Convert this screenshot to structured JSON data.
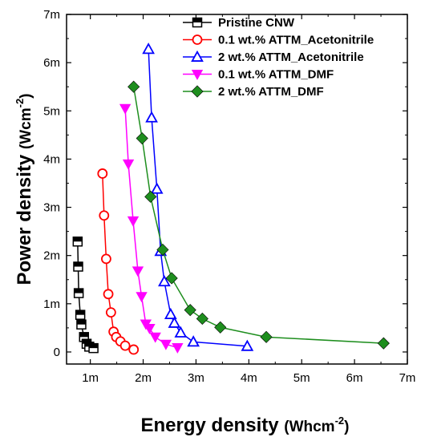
{
  "chart_data": {
    "type": "line",
    "xlabel": "Energy density",
    "xlabel_unit_prefix": "(Whcm",
    "xlabel_unit_exp": "-2",
    "xlabel_unit_suffix": ")",
    "ylabel": "Power density",
    "ylabel_unit_prefix": "(Wcm",
    "ylabel_unit_exp": "-2",
    "ylabel_unit_suffix": ")",
    "xlim": [
      0.00055,
      0.007
    ],
    "ylim": [
      -0.00025,
      0.007
    ],
    "x_ticks": [
      {
        "value": 0.001,
        "label": "1m"
      },
      {
        "value": 0.002,
        "label": "2m"
      },
      {
        "value": 0.003,
        "label": "3m"
      },
      {
        "value": 0.004,
        "label": "4m"
      },
      {
        "value": 0.005,
        "label": "5m"
      },
      {
        "value": 0.006,
        "label": "6m"
      },
      {
        "value": 0.007,
        "label": "7m"
      }
    ],
    "y_ticks": [
      {
        "value": 0,
        "label": "0"
      },
      {
        "value": 0.001,
        "label": "1m"
      },
      {
        "value": 0.002,
        "label": "2m"
      },
      {
        "value": 0.003,
        "label": "3m"
      },
      {
        "value": 0.004,
        "label": "4m"
      },
      {
        "value": 0.005,
        "label": "5m"
      },
      {
        "value": 0.006,
        "label": "6m"
      },
      {
        "value": 0.007,
        "label": "7m"
      }
    ],
    "grid": false,
    "legend_position": "top-right",
    "series": [
      {
        "name": "Pristine CNW",
        "color": "#000000",
        "marker": "half-square",
        "x": [
          0.00076,
          0.00077,
          0.00078,
          0.00081,
          0.00083,
          0.00088,
          0.00093,
          0.00098,
          0.00106
        ],
        "y": [
          0.00229,
          0.00177,
          0.00122,
          0.00077,
          0.00057,
          0.00031,
          0.00017,
          0.00011,
          8e-05
        ]
      },
      {
        "name": "0.1 wt.% ATTM_Acetonitrile",
        "color": "#ff0000",
        "marker": "open-circle",
        "x": [
          0.00123,
          0.00126,
          0.0013,
          0.00134,
          0.00139,
          0.00144,
          0.00149,
          0.00157,
          0.00166,
          0.00182
        ],
        "y": [
          0.0037,
          0.00283,
          0.00193,
          0.0012,
          0.00082,
          0.00042,
          0.00031,
          0.00022,
          0.00013,
          5e-05
        ]
      },
      {
        "name": "2 wt.% ATTM_Acetonitrile",
        "color": "#0000ff",
        "marker": "open-triangle",
        "x": [
          0.0021,
          0.00216,
          0.00226,
          0.00233,
          0.0024,
          0.00252,
          0.00259,
          0.00271,
          0.00295,
          0.00397
        ],
        "y": [
          0.00628,
          0.00486,
          0.00338,
          0.00209,
          0.00146,
          0.00078,
          0.0006,
          0.0004,
          0.00021,
          0.00012
        ]
      },
      {
        "name": "0.1 wt.% ATTM_DMF",
        "color": "#ff00ff",
        "marker": "down-triangle",
        "x": [
          0.00166,
          0.00172,
          0.00181,
          0.0019,
          0.00197,
          0.00205,
          0.00212,
          0.00223,
          0.00243,
          0.00265
        ],
        "y": [
          0.00505,
          0.0039,
          0.00272,
          0.00168,
          0.00115,
          0.00058,
          0.00049,
          0.00031,
          0.00016,
          9e-05
        ]
      },
      {
        "name": "2 wt.% ATTM_DMF",
        "color": "#1e8e1e",
        "marker": "diamond",
        "x": [
          0.00182,
          0.00198,
          0.00214,
          0.00237,
          0.00254,
          0.00289,
          0.00312,
          0.00346,
          0.00433,
          0.00655
        ],
        "y": [
          0.0055,
          0.00443,
          0.00322,
          0.00212,
          0.00153,
          0.00087,
          0.00069,
          0.00051,
          0.00031,
          0.00018
        ]
      }
    ]
  }
}
